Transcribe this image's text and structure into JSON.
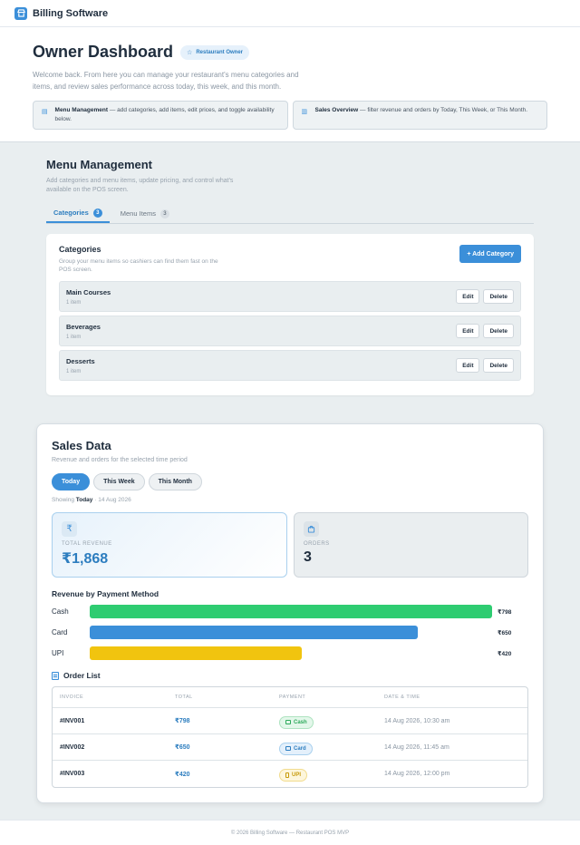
{
  "header": {
    "brand": "Billing Software",
    "logo_icon": "store-icon"
  },
  "hero": {
    "title": "Owner Dashboard",
    "role_badge": "Restaurant Owner",
    "description": "Welcome back. From here you can manage your restaurant's menu categories and items, and review sales performance across today, this week, and this month.",
    "cards": [
      {
        "icon": "layout-icon",
        "title": "Menu Management",
        "text": " — add categories, add items, edit prices, and toggle availability below."
      },
      {
        "icon": "chart-icon",
        "title": "Sales Overview",
        "text": " — filter revenue and orders by Today, This Week, or This Month."
      }
    ]
  },
  "menu": {
    "title": "Menu Management",
    "description": "Add categories and menu items, update pricing, and control what's available on the POS screen.",
    "tabs": [
      {
        "label": "Categories",
        "count": "3",
        "active": true
      },
      {
        "label": "Menu Items",
        "count": "3",
        "active": false
      }
    ],
    "panel": {
      "title": "Categories",
      "description": "Group your menu items so cashiers can find them fast on the POS screen.",
      "add_label": "+ Add Category",
      "edit_label": "Edit",
      "delete_label": "Delete",
      "rows": [
        {
          "name": "Main Courses",
          "count": "1 item"
        },
        {
          "name": "Beverages",
          "count": "1 item"
        },
        {
          "name": "Desserts",
          "count": "1 item"
        }
      ]
    }
  },
  "sales": {
    "title": "Sales Data",
    "description": "Revenue and orders for the selected time period",
    "periods": [
      "Today",
      "This Week",
      "This Month"
    ],
    "active_period": "Today",
    "showing_prefix": "Showing ",
    "showing_period": "Today",
    "showing_date": " · 14 Aug 2026",
    "revenue": {
      "icon": "₹",
      "label": "TOTAL REVENUE",
      "value": "₹1,868"
    },
    "orders": {
      "label": "ORDERS",
      "value": "3"
    },
    "payment_title": "Revenue by Payment Method",
    "payment_methods": [
      {
        "label": "Cash",
        "value_text": "₹798",
        "amount": 798,
        "color": "#2ecc71"
      },
      {
        "label": "Card",
        "value_text": "₹650",
        "amount": 650,
        "color": "#3b8fd9"
      },
      {
        "label": "UPI",
        "value_text": "₹420",
        "amount": 420,
        "color": "#f1c40f"
      }
    ],
    "order_list_title": "Order List",
    "columns": [
      "INVOICE",
      "TOTAL",
      "PAYMENT",
      "DATE & TIME"
    ],
    "orders_list": [
      {
        "invoice": "#INV001",
        "total": "₹798",
        "payment": "Cash",
        "datetime": "14 Aug 2026, 10:30 am"
      },
      {
        "invoice": "#INV002",
        "total": "₹650",
        "payment": "Card",
        "datetime": "14 Aug 2026, 11:45 am"
      },
      {
        "invoice": "#INV003",
        "total": "₹420",
        "payment": "UPI",
        "datetime": "14 Aug 2026, 12:00 pm"
      }
    ]
  },
  "footer": {
    "text": "© 2026 Billing Software — Restaurant POS MVP"
  }
}
